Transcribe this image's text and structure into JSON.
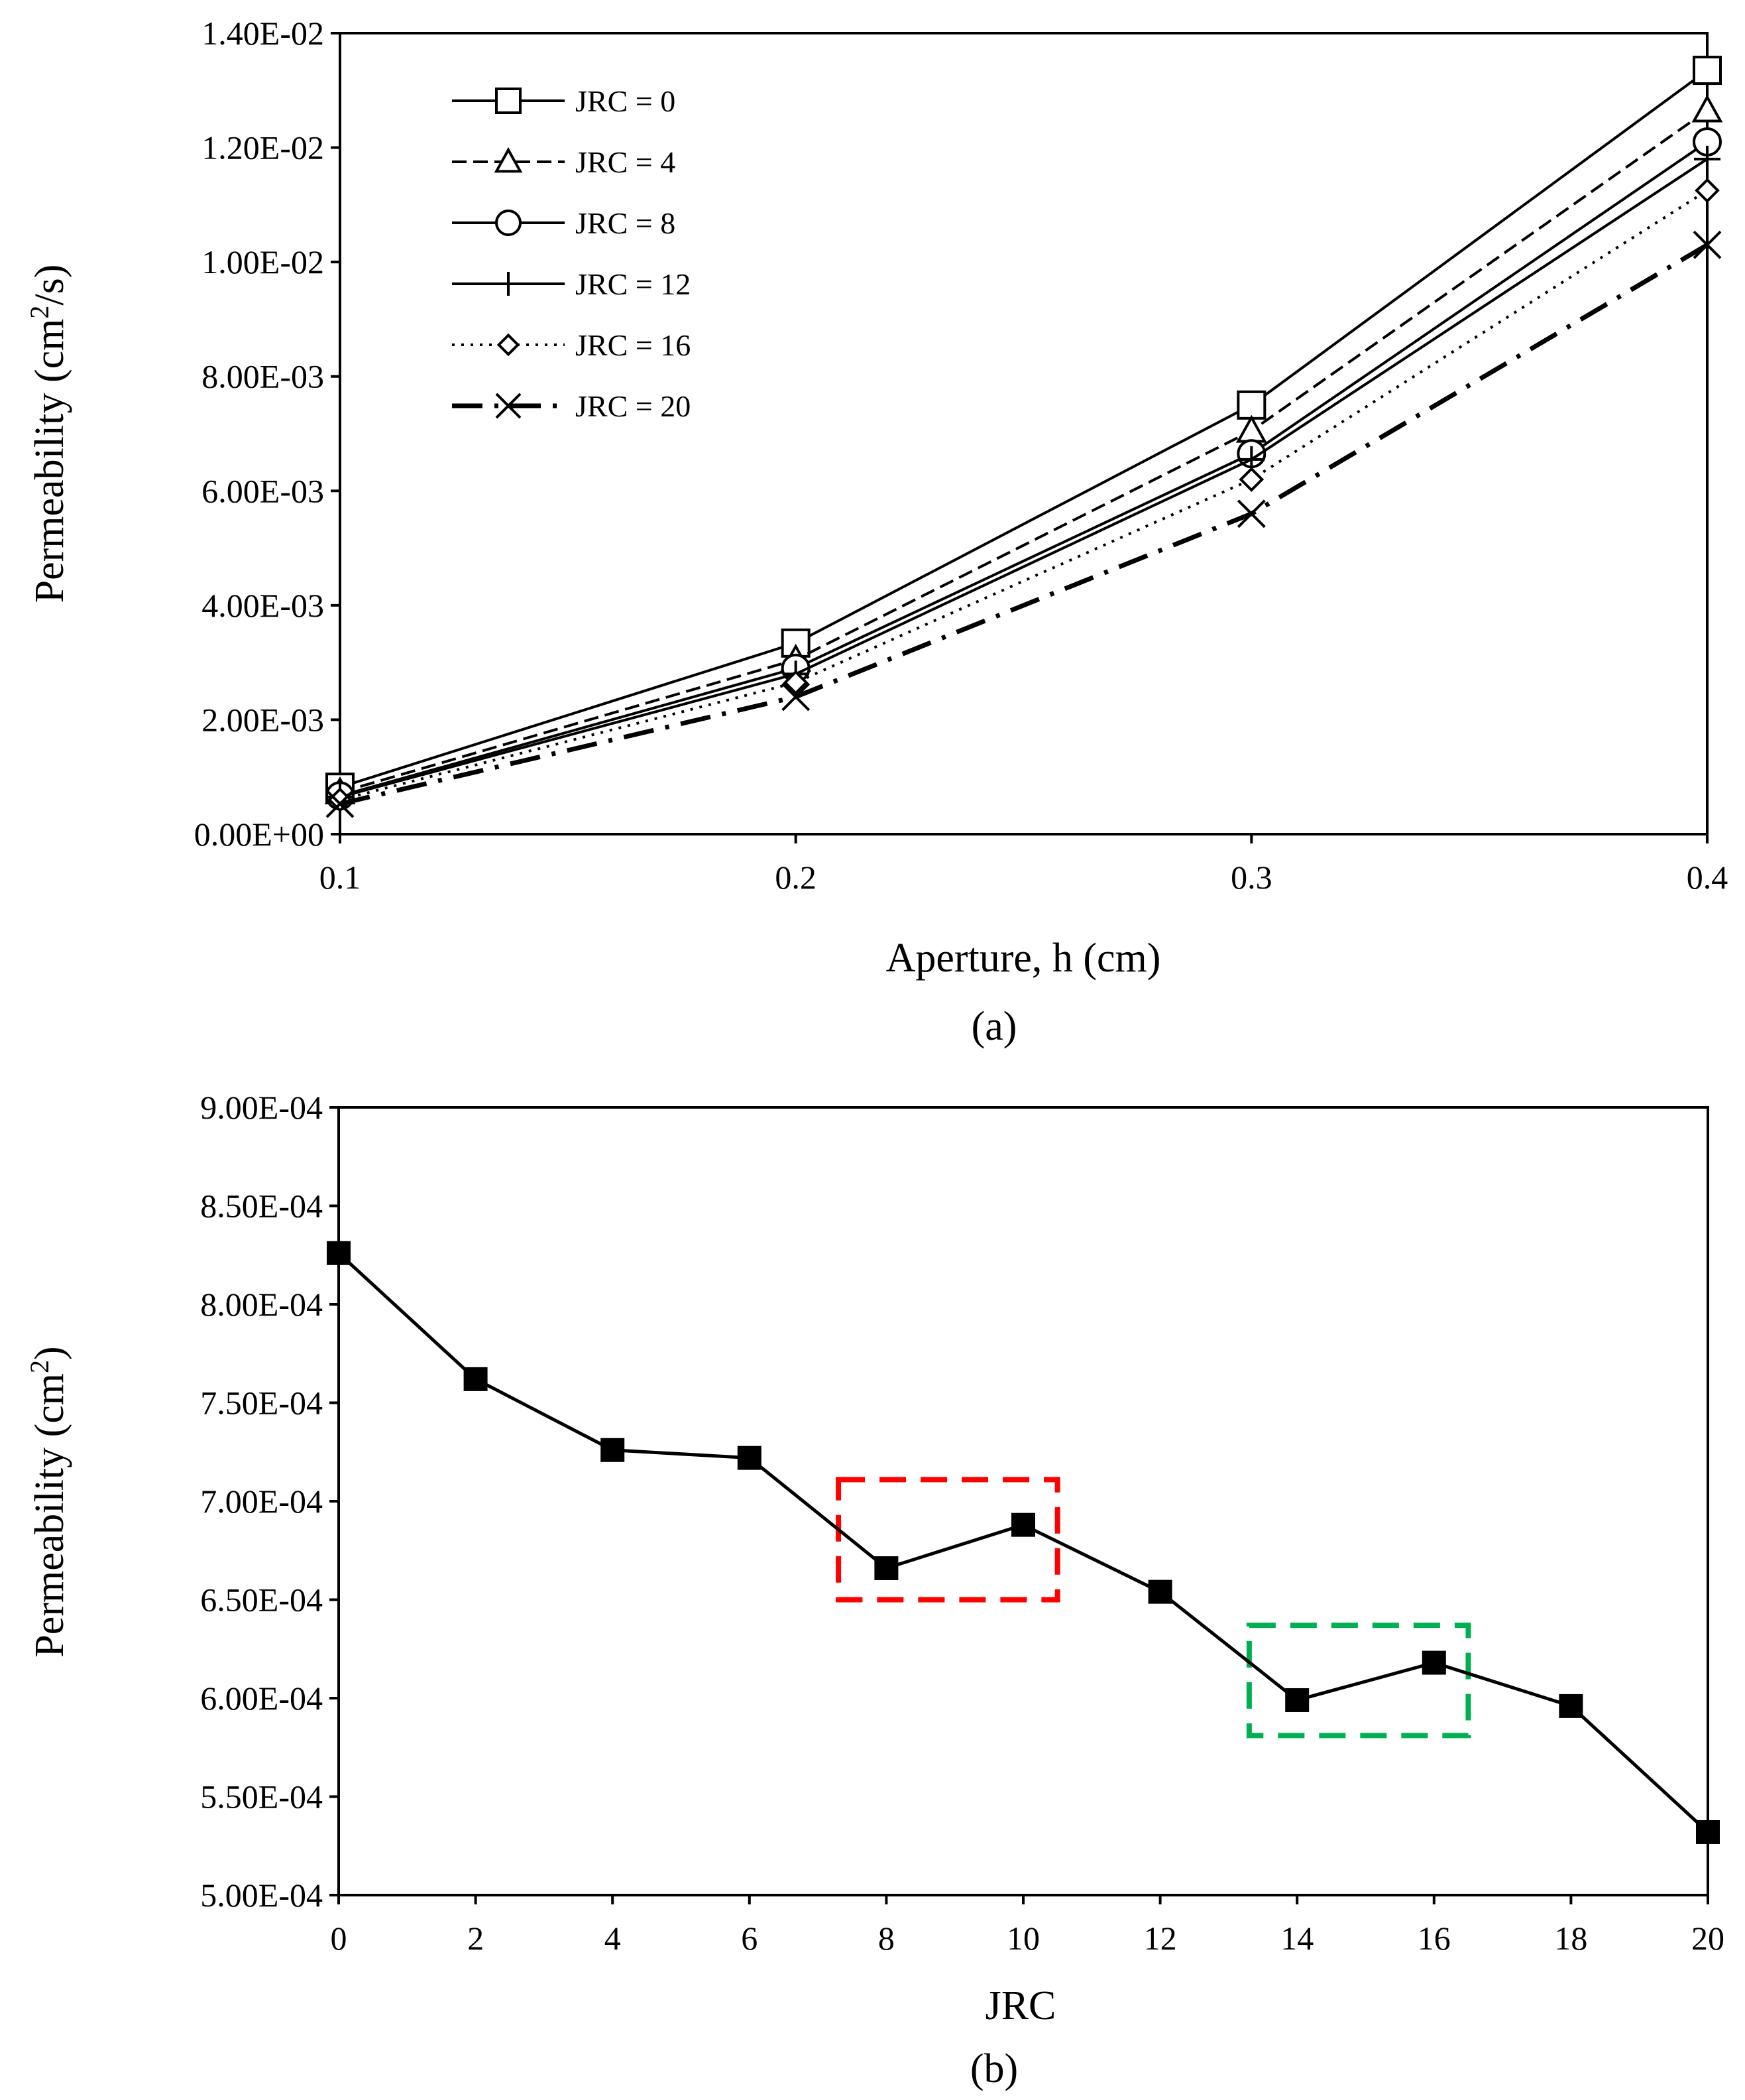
{
  "chart_data": [
    {
      "type": "line",
      "panel_label": "(a)",
      "title": "",
      "xlabel": "Aperture, h (cm)",
      "ylabel_main": "Permeability  (cm",
      "ylabel_sup": "2",
      "ylabel_tail": "/s)",
      "x": [
        0.1,
        0.2,
        0.3,
        0.4
      ],
      "x_tick_labels": [
        "0.1",
        "0.2",
        "0.3",
        "0.4"
      ],
      "xlim": [
        0.1,
        0.4
      ],
      "ylim": [
        0,
        0.014
      ],
      "y_ticks": [
        0,
        0.002,
        0.004,
        0.006,
        0.008,
        0.01,
        0.012,
        0.014
      ],
      "y_tick_labels": [
        "0.00E+00",
        "2.00E-03",
        "4.00E-03",
        "6.00E-03",
        "8.00E-03",
        "1.00E-02",
        "1.20E-02",
        "1.40E-02"
      ],
      "legend_position": "top-left",
      "grid": false,
      "series": [
        {
          "name": "JRC = 0",
          "marker": "square",
          "dash": "solid",
          "values": [
            0.00082,
            0.00334,
            0.0075,
            0.01335
          ]
        },
        {
          "name": "JRC = 4",
          "marker": "triangle",
          "dash": "dashed",
          "values": [
            0.00073,
            0.00305,
            0.00705,
            0.01265
          ]
        },
        {
          "name": "JRC = 8",
          "marker": "circle",
          "dash": "solid",
          "values": [
            0.00067,
            0.0029,
            0.00665,
            0.0121
          ]
        },
        {
          "name": "JRC = 12",
          "marker": "plus",
          "dash": "solid",
          "values": [
            0.00065,
            0.0028,
            0.00655,
            0.0118
          ]
        },
        {
          "name": "JRC = 16",
          "marker": "diamond",
          "dash": "dotted",
          "values": [
            0.0006,
            0.00265,
            0.0062,
            0.01125
          ]
        },
        {
          "name": "JRC = 20",
          "marker": "x",
          "dash": "dashdot",
          "values": [
            0.00053,
            0.0024,
            0.0056,
            0.0103
          ]
        }
      ]
    },
    {
      "type": "line",
      "panel_label": "(b)",
      "title": "",
      "xlabel": "JRC",
      "ylabel_main": "Permeability  (cm",
      "ylabel_sup": "2",
      "ylabel_tail": ")",
      "x": [
        0,
        2,
        4,
        6,
        8,
        10,
        12,
        14,
        16,
        18,
        20
      ],
      "x_tick_labels": [
        "0",
        "2",
        "4",
        "6",
        "8",
        "10",
        "12",
        "14",
        "16",
        "18",
        "20"
      ],
      "xlim": [
        0,
        20
      ],
      "ylim": [
        0.0005,
        0.0009
      ],
      "y_ticks": [
        0.0005,
        0.00055,
        0.0006,
        0.00065,
        0.0007,
        0.00075,
        0.0008,
        0.00085,
        0.0009
      ],
      "y_tick_labels": [
        "5.00E-04",
        "5.50E-04",
        "6.00E-04",
        "6.50E-04",
        "7.00E-04",
        "7.50E-04",
        "8.00E-04",
        "8.50E-04",
        "9.00E-04"
      ],
      "grid": false,
      "series": [
        {
          "name": "Permeability",
          "marker": "filled-square",
          "values": [
            0.000826,
            0.000762,
            0.000726,
            0.000722,
            0.000666,
            0.000688,
            0.000654,
            0.000599,
            0.000618,
            0.000596,
            0.000532
          ]
        }
      ],
      "highlights": [
        {
          "name": "red-box",
          "color": "#ff0000",
          "x_range": [
            7.3,
            10.5
          ],
          "y_range": [
            0.00065,
            0.000711
          ]
        },
        {
          "name": "green-box",
          "color": "#00b050",
          "x_range": [
            13.3,
            16.5
          ],
          "y_range": [
            0.000581,
            0.000637
          ]
        }
      ]
    }
  ]
}
